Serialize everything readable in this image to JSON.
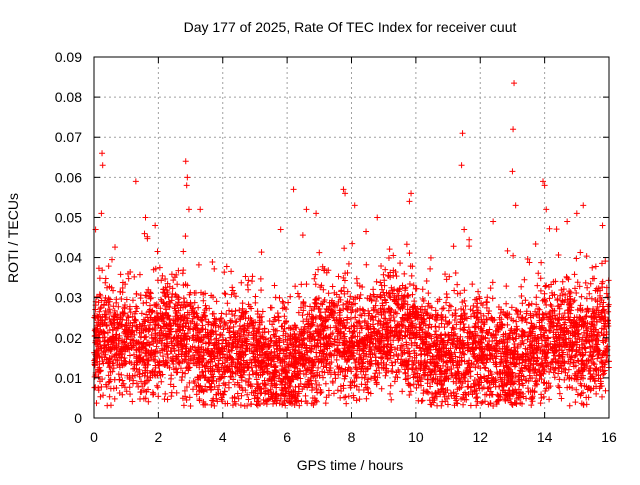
{
  "chart_data": {
    "type": "scatter",
    "title": "Day 177 of 2025, Rate Of TEC Index for receiver cuut",
    "xlabel": "GPS time / hours",
    "ylabel": "ROTI / TECUs",
    "xlim": [
      0,
      16
    ],
    "ylim": [
      0,
      0.09
    ],
    "xticks": [
      0,
      2,
      4,
      6,
      8,
      10,
      12,
      14,
      16
    ],
    "xtick_labels": [
      "0",
      "2",
      "4",
      "6",
      "8",
      "10",
      "12",
      "14",
      "16"
    ],
    "yticks": [
      0,
      0.01,
      0.02,
      0.03,
      0.04,
      0.05,
      0.06,
      0.07,
      0.08,
      0.09
    ],
    "ytick_labels": [
      "0",
      "0.01",
      "0.02",
      "0.03",
      "0.04",
      "0.05",
      "0.06",
      "0.07",
      "0.08",
      "0.09"
    ],
    "grid": true,
    "marker": "+",
    "series": [
      {
        "name": "ROTI",
        "color": "#ff0000",
        "description_bands": {
          "x_range": [
            0,
            16
          ],
          "typical_range": [
            0.005,
            0.035
          ],
          "dense_center": 0.017
        },
        "points": [
          [
            0.25,
            0.066
          ],
          [
            0.27,
            0.063
          ],
          [
            0.23,
            0.051
          ],
          [
            0.05,
            0.047
          ],
          [
            1.3,
            0.059
          ],
          [
            2.85,
            0.064
          ],
          [
            2.9,
            0.06
          ],
          [
            2.88,
            0.058
          ],
          [
            2.95,
            0.052
          ],
          [
            3.3,
            0.052
          ],
          [
            6.2,
            0.057
          ],
          [
            7.75,
            0.057
          ],
          [
            7.8,
            0.056
          ],
          [
            8.1,
            0.053
          ],
          [
            9.85,
            0.056
          ],
          [
            9.8,
            0.054
          ],
          [
            11.45,
            0.071
          ],
          [
            11.42,
            0.063
          ],
          [
            13.05,
            0.0835
          ],
          [
            13.02,
            0.072
          ],
          [
            13.0,
            0.0615
          ],
          [
            13.1,
            0.053
          ],
          [
            13.95,
            0.059
          ],
          [
            14.0,
            0.058
          ],
          [
            14.05,
            0.052
          ],
          [
            15.2,
            0.053
          ],
          [
            15.0,
            0.051
          ],
          [
            5.8,
            0.047
          ],
          [
            6.6,
            0.052
          ],
          [
            6.9,
            0.051
          ],
          [
            8.8,
            0.05
          ],
          [
            11.5,
            0.047
          ],
          [
            12.4,
            0.049
          ],
          [
            14.7,
            0.049
          ],
          [
            15.8,
            0.048
          ],
          [
            1.6,
            0.05
          ],
          [
            1.9,
            0.048
          ],
          [
            3.0,
            0.003
          ],
          [
            3.4,
            0.004
          ],
          [
            12.4,
            0.003
          ],
          [
            12.5,
            0.004
          ],
          [
            4.3,
            0.005
          ],
          [
            6.8,
            0.005
          ],
          [
            9.2,
            0.006
          ],
          [
            10.5,
            0.006
          ],
          [
            13.9,
            0.005
          ],
          [
            15.6,
            0.006
          ]
        ],
        "generated_cloud": {
          "count": 5200,
          "seed": 177
        }
      }
    ]
  }
}
